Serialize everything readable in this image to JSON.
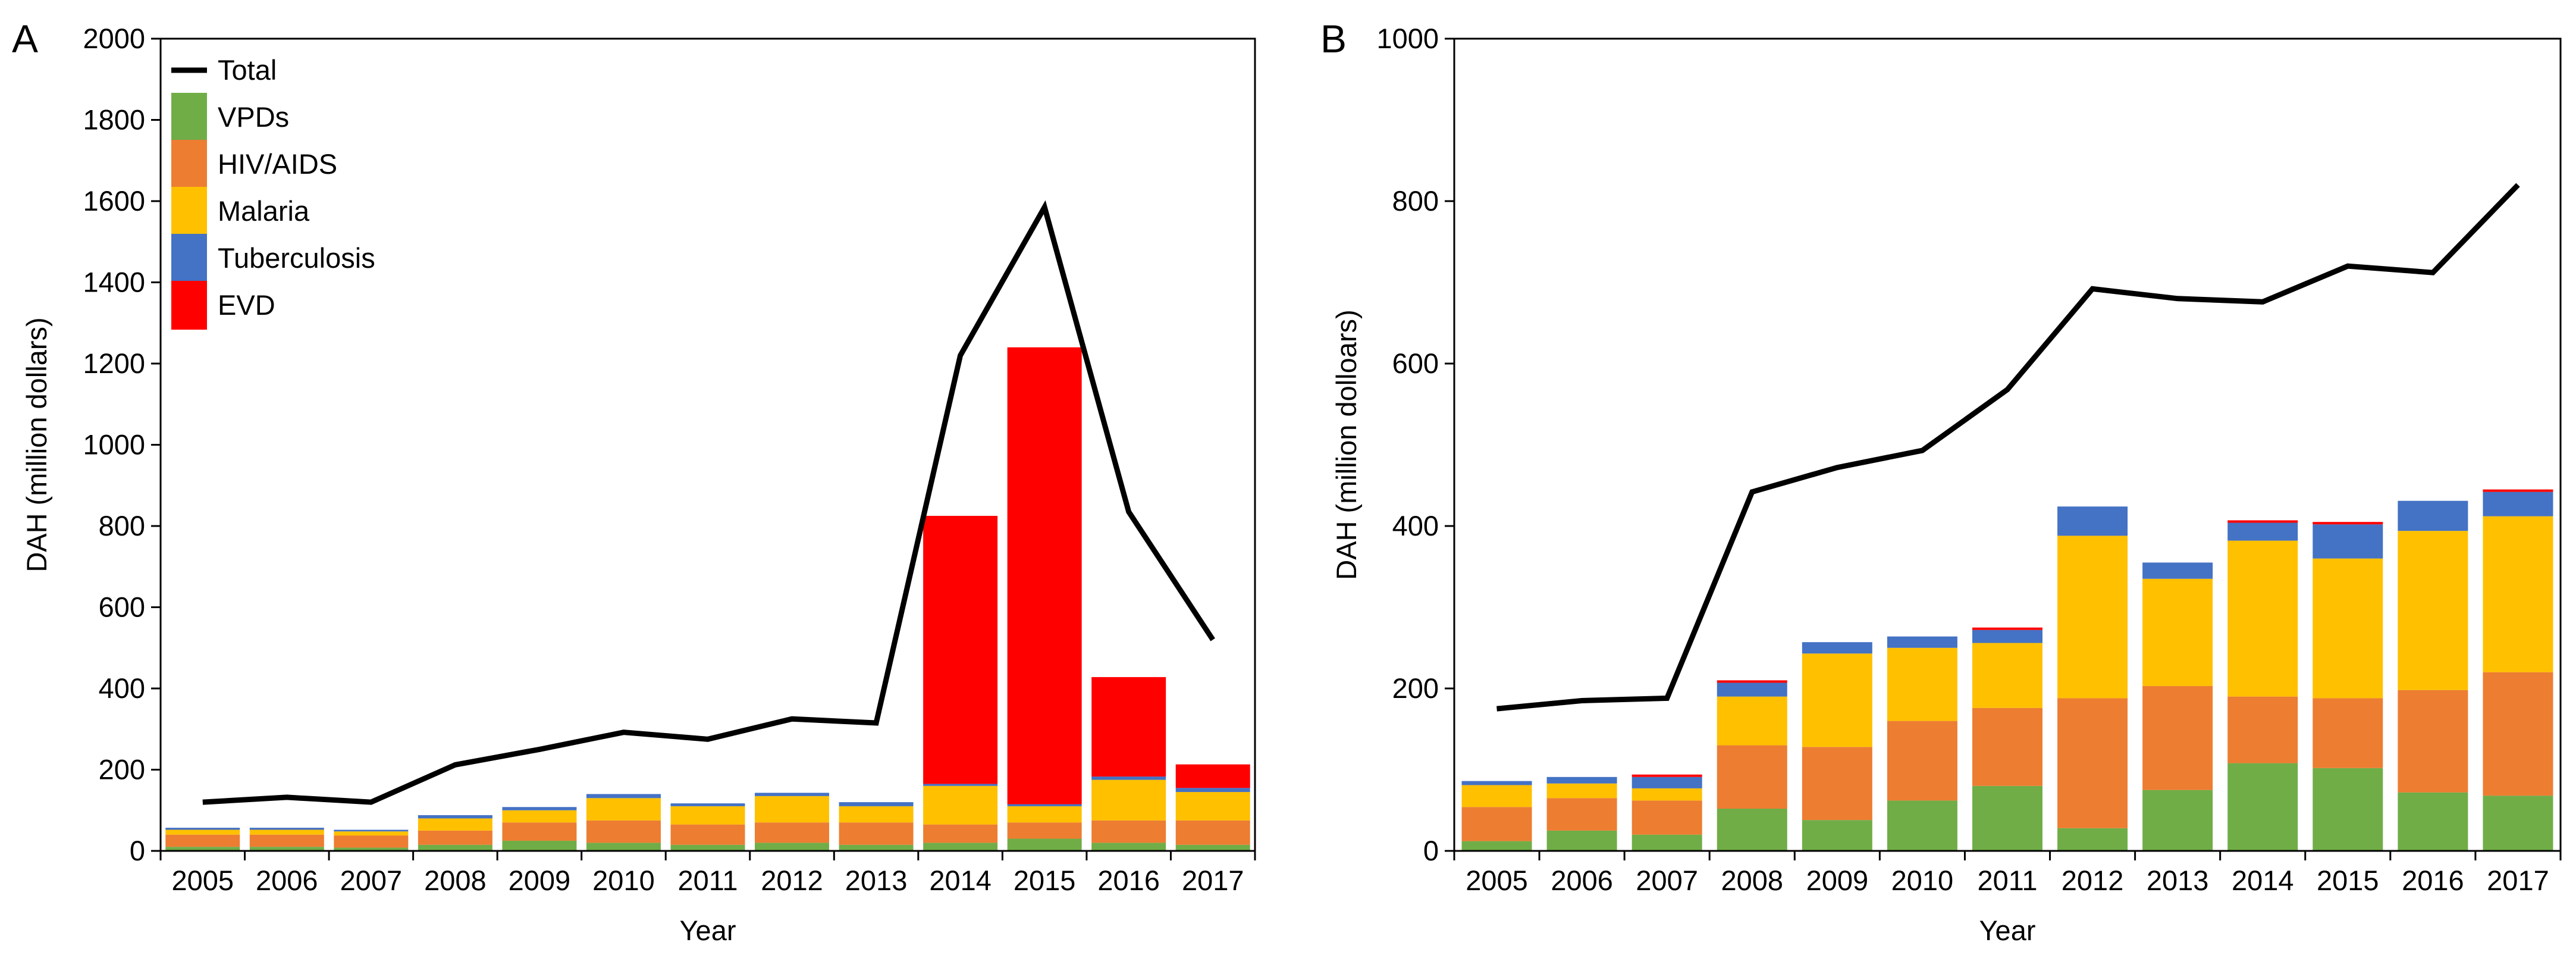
{
  "chart_data": [
    {
      "panel_label": "A",
      "type": "bar+line",
      "stacked": true,
      "title": "",
      "xlabel": "Year",
      "ylabel": "DAH (million dollars)",
      "ylim": [
        0,
        2000
      ],
      "yticks": [
        0,
        200,
        400,
        600,
        800,
        1000,
        1200,
        1400,
        1600,
        1800,
        2000
      ],
      "grid": false,
      "legend": {
        "position": "top-left",
        "entries": [
          "Total",
          "VPDs",
          "HIV/AIDS",
          "Malaria",
          "Tuberculosis",
          "EVD"
        ]
      },
      "categories": [
        "2005",
        "2006",
        "2007",
        "2008",
        "2009",
        "2010",
        "2011",
        "2012",
        "2013",
        "2014",
        "2015",
        "2016",
        "2017"
      ],
      "series": [
        {
          "name": "VPDs",
          "kind": "bar",
          "color": "#70AD47",
          "values": [
            10,
            10,
            8,
            15,
            25,
            20,
            15,
            20,
            15,
            20,
            30,
            20,
            15
          ]
        },
        {
          "name": "HIV/AIDS",
          "kind": "bar",
          "color": "#ED7D31",
          "values": [
            30,
            30,
            30,
            35,
            45,
            55,
            50,
            50,
            55,
            45,
            40,
            55,
            60
          ]
        },
        {
          "name": "Malaria",
          "kind": "bar",
          "color": "#FFC000",
          "values": [
            12,
            12,
            10,
            30,
            30,
            55,
            45,
            65,
            40,
            95,
            40,
            100,
            70
          ]
        },
        {
          "name": "Tuberculosis",
          "kind": "bar",
          "color": "#4472C4",
          "values": [
            5,
            5,
            4,
            8,
            8,
            10,
            7,
            8,
            10,
            5,
            5,
            8,
            10
          ]
        },
        {
          "name": "EVD",
          "kind": "bar",
          "color": "#FF0000",
          "values": [
            0,
            0,
            0,
            0,
            0,
            0,
            0,
            0,
            0,
            660,
            1125,
            245,
            58
          ]
        },
        {
          "name": "Total",
          "kind": "line",
          "color": "#000000",
          "values": [
            120,
            132,
            120,
            212,
            250,
            292,
            275,
            325,
            315,
            1220,
            1585,
            835,
            520
          ]
        }
      ]
    },
    {
      "panel_label": "B",
      "type": "bar+line",
      "stacked": true,
      "title": "",
      "xlabel": "Year",
      "ylabel": "DAH (million dolloars)",
      "ylim": [
        0,
        1000
      ],
      "yticks": [
        0,
        200,
        400,
        600,
        800,
        1000
      ],
      "grid": false,
      "legend": null,
      "categories": [
        "2005",
        "2006",
        "2007",
        "2008",
        "2009",
        "2010",
        "2011",
        "2012",
        "2013",
        "2014",
        "2015",
        "2016",
        "2017"
      ],
      "series": [
        {
          "name": "VPDs",
          "kind": "bar",
          "color": "#70AD47",
          "values": [
            12,
            25,
            20,
            52,
            38,
            62,
            80,
            28,
            75,
            108,
            102,
            72,
            68
          ]
        },
        {
          "name": "HIV/AIDS",
          "kind": "bar",
          "color": "#ED7D31",
          "values": [
            42,
            40,
            42,
            78,
            90,
            98,
            96,
            160,
            128,
            82,
            86,
            126,
            152
          ]
        },
        {
          "name": "Malaria",
          "kind": "bar",
          "color": "#FFC000",
          "values": [
            27,
            18,
            15,
            60,
            115,
            90,
            80,
            200,
            132,
            192,
            172,
            196,
            192
          ]
        },
        {
          "name": "Tuberculosis",
          "kind": "bar",
          "color": "#4472C4",
          "values": [
            5,
            8,
            14,
            17,
            14,
            14,
            16,
            36,
            20,
            22,
            42,
            37,
            30
          ]
        },
        {
          "name": "EVD",
          "kind": "bar",
          "color": "#FF0000",
          "values": [
            0,
            0,
            3,
            3,
            0,
            0,
            3,
            0,
            0,
            3,
            3,
            0,
            3
          ]
        },
        {
          "name": "Total",
          "kind": "line",
          "color": "#000000",
          "values": [
            175,
            185,
            188,
            442,
            472,
            493,
            568,
            692,
            680,
            676,
            720,
            712,
            820
          ]
        }
      ]
    }
  ]
}
